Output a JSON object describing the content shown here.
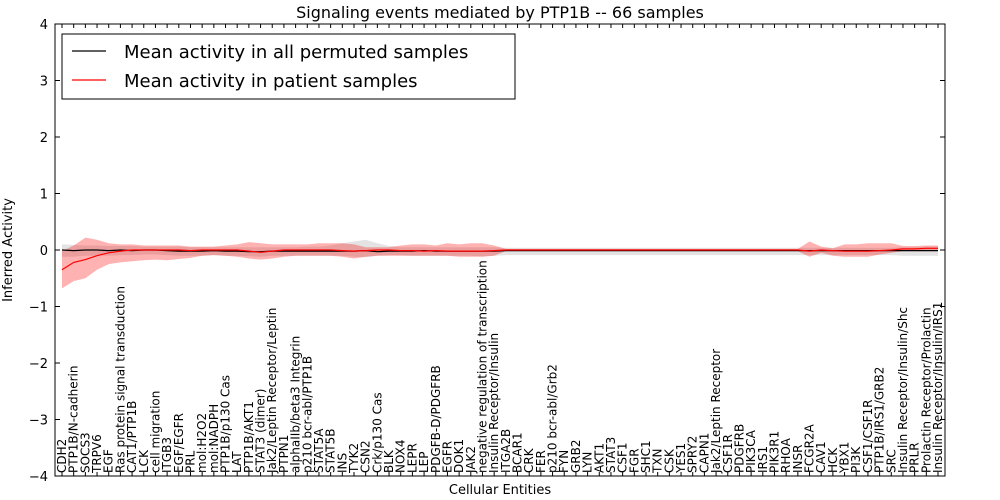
{
  "chart_data": {
    "type": "line",
    "title": "Signaling events mediated by PTP1B -- 66 samples",
    "xlabel": "Cellular Entities",
    "ylabel": "Inferred Activity",
    "ylim": [
      -4,
      4
    ],
    "yticks": [
      -4,
      -3,
      -2,
      -1,
      0,
      1,
      2,
      3,
      4
    ],
    "grid": false,
    "legend_position": "top-left",
    "categories": [
      "CDH2",
      "PTP1B/N-cadherin",
      "SOCS3",
      "TRPV6",
      "EGF",
      "Ras protein signal transduction",
      "CAT1/PTP1B",
      "LCK",
      "cell migration",
      "ITGB3",
      "EGF/EGFR",
      "PRL",
      "mol:H2O2",
      "mol:NADPH",
      "PTP1B/p130 Cas",
      "LAT",
      "PTP1B/AKT1",
      "STAT3 (dimer)",
      "Jak2/Leptin Receptor/Leptin",
      "PTPN1",
      "alphaIIb/beta3 Integrin",
      "p210 bcr-abl/PTP1B",
      "STAT5A",
      "STAT5B",
      "INS",
      "TYK2",
      "CSN2",
      "Crk/p130 Cas",
      "BLK",
      "NOX4",
      "LEPR",
      "LEP",
      "PDGFB-D/PDGFRB",
      "EGFR",
      "DOK1",
      "JAK2",
      "negative regulation of transcription",
      "Insulin Receptor/Insulin",
      "ITGA2B",
      "BCAR1",
      "CRK",
      "FER",
      "p210 bcr-abl/Grb2",
      "FYN",
      "GRB2",
      "LYN",
      "AKT1",
      "STAT3",
      "CSF1",
      "FGR",
      "SHC1",
      "TXN",
      "CSK",
      "YES1",
      "SPRY2",
      "CAPN1",
      "Jak2/Leptin Receptor",
      "CSF1R",
      "PDGFRB",
      "PIK3CA",
      "IRS1",
      "PIK3R1",
      "RHOA",
      "INSR",
      "FCGR2A",
      "CAV1",
      "HCK",
      "YBX1",
      "PI3K",
      "CSF1/CSF1R",
      "PTP1B/IRS1/GRB2",
      "SRC",
      "Insulin Receptor/Insulin/Shc",
      "PRLR",
      "Prolactin Receptor/Prolactin",
      "Insulin Receptor/Insulin/IRS1"
    ],
    "series": [
      {
        "name": "Mean activity in all permuted samples",
        "color": "#000000",
        "values": [
          0.0,
          -0.01,
          0.0,
          0.0,
          -0.01,
          0.0,
          -0.01,
          0.0,
          0.0,
          -0.01,
          -0.02,
          -0.02,
          -0.02,
          -0.01,
          -0.02,
          -0.02,
          -0.03,
          -0.03,
          -0.02,
          -0.02,
          -0.02,
          -0.02,
          -0.02,
          -0.02,
          -0.02,
          -0.02,
          -0.01,
          -0.03,
          -0.02,
          -0.02,
          -0.02,
          -0.01,
          -0.02,
          -0.02,
          -0.02,
          -0.02,
          -0.02,
          -0.02,
          -0.01,
          -0.01,
          -0.01,
          -0.01,
          -0.01,
          -0.01,
          -0.01,
          -0.01,
          -0.01,
          -0.01,
          -0.01,
          -0.01,
          -0.01,
          -0.01,
          -0.01,
          -0.01,
          -0.01,
          -0.01,
          -0.01,
          -0.01,
          -0.01,
          -0.01,
          -0.01,
          -0.01,
          -0.01,
          -0.01,
          -0.01,
          -0.01,
          -0.01,
          -0.01,
          -0.01,
          -0.01,
          -0.01,
          -0.01,
          -0.01,
          -0.01,
          -0.01,
          -0.01
        ],
        "lower": [
          -0.12,
          -0.12,
          -0.1,
          -0.1,
          -0.1,
          -0.09,
          -0.09,
          -0.08,
          -0.08,
          -0.09,
          -0.1,
          -0.1,
          -0.1,
          -0.09,
          -0.1,
          -0.1,
          -0.11,
          -0.12,
          -0.1,
          -0.1,
          -0.1,
          -0.1,
          -0.1,
          -0.1,
          -0.1,
          -0.12,
          -0.13,
          -0.1,
          -0.09,
          -0.09,
          -0.1,
          -0.1,
          -0.1,
          -0.1,
          -0.1,
          -0.1,
          -0.11,
          -0.1,
          -0.09,
          -0.09,
          -0.09,
          -0.09,
          -0.09,
          -0.09,
          -0.09,
          -0.09,
          -0.09,
          -0.09,
          -0.09,
          -0.09,
          -0.09,
          -0.09,
          -0.09,
          -0.09,
          -0.09,
          -0.09,
          -0.09,
          -0.09,
          -0.09,
          -0.09,
          -0.09,
          -0.09,
          -0.09,
          -0.09,
          -0.09,
          -0.09,
          -0.09,
          -0.09,
          -0.09,
          -0.09,
          -0.09,
          -0.09,
          -0.1,
          -0.1,
          -0.1,
          -0.1
        ],
        "upper": [
          0.1,
          0.09,
          0.08,
          0.08,
          0.07,
          0.07,
          0.07,
          0.06,
          0.06,
          0.06,
          0.06,
          0.05,
          0.05,
          0.05,
          0.05,
          0.05,
          0.05,
          0.05,
          0.05,
          0.05,
          0.05,
          0.06,
          0.06,
          0.08,
          0.12,
          0.15,
          0.18,
          0.12,
          0.07,
          0.05,
          0.05,
          0.05,
          0.05,
          0.05,
          0.05,
          0.05,
          0.05,
          0.05,
          0.04,
          0.04,
          0.04,
          0.04,
          0.04,
          0.04,
          0.04,
          0.04,
          0.04,
          0.04,
          0.04,
          0.04,
          0.04,
          0.04,
          0.04,
          0.04,
          0.04,
          0.04,
          0.04,
          0.04,
          0.04,
          0.04,
          0.04,
          0.04,
          0.04,
          0.04,
          0.04,
          0.04,
          0.04,
          0.04,
          0.04,
          0.04,
          0.04,
          0.04,
          0.05,
          0.05,
          0.06,
          0.06
        ]
      },
      {
        "name": "Mean activity in patient samples",
        "color": "#ff0000",
        "values": [
          -0.35,
          -0.22,
          -0.17,
          -0.1,
          -0.05,
          -0.02,
          0.0,
          0.0,
          0.0,
          0.0,
          0.0,
          -0.01,
          0.0,
          0.0,
          0.0,
          0.0,
          -0.02,
          -0.04,
          -0.02,
          0.0,
          0.0,
          0.0,
          0.0,
          0.0,
          -0.01,
          -0.02,
          -0.01,
          0.0,
          0.0,
          -0.01,
          -0.01,
          -0.02,
          -0.01,
          -0.02,
          -0.02,
          -0.02,
          -0.02,
          -0.01,
          0.0,
          0.0,
          0.0,
          0.0,
          0.0,
          0.0,
          0.0,
          0.0,
          0.0,
          0.0,
          0.0,
          0.0,
          0.0,
          0.0,
          0.0,
          0.0,
          0.0,
          0.0,
          0.0,
          0.0,
          0.0,
          0.0,
          0.0,
          0.0,
          0.0,
          0.0,
          -0.02,
          0.0,
          -0.01,
          -0.02,
          -0.02,
          -0.02,
          -0.01,
          0.0,
          0.02,
          0.02,
          0.03,
          0.03
        ],
        "lower": [
          -0.68,
          -0.55,
          -0.5,
          -0.35,
          -0.25,
          -0.22,
          -0.2,
          -0.18,
          -0.17,
          -0.18,
          -0.16,
          -0.14,
          -0.1,
          -0.09,
          -0.1,
          -0.12,
          -0.15,
          -0.17,
          -0.15,
          -0.12,
          -0.1,
          -0.1,
          -0.1,
          -0.1,
          -0.12,
          -0.15,
          -0.12,
          -0.1,
          -0.1,
          -0.1,
          -0.1,
          -0.1,
          -0.1,
          -0.1,
          -0.12,
          -0.12,
          -0.12,
          -0.1,
          -0.02,
          -0.02,
          -0.02,
          -0.02,
          -0.02,
          -0.02,
          -0.02,
          -0.02,
          -0.02,
          -0.02,
          -0.02,
          -0.02,
          -0.02,
          -0.02,
          -0.02,
          -0.02,
          -0.02,
          -0.02,
          -0.02,
          -0.02,
          -0.02,
          -0.02,
          -0.02,
          -0.02,
          -0.02,
          -0.02,
          -0.12,
          -0.05,
          -0.1,
          -0.12,
          -0.12,
          -0.12,
          -0.08,
          -0.05,
          -0.02,
          -0.02,
          -0.02,
          -0.02
        ],
        "upper": [
          -0.02,
          0.08,
          0.22,
          0.18,
          0.12,
          0.1,
          0.1,
          0.08,
          0.08,
          0.08,
          0.08,
          0.06,
          0.06,
          0.06,
          0.08,
          0.1,
          0.14,
          0.12,
          0.1,
          0.1,
          0.1,
          0.1,
          0.12,
          0.12,
          0.12,
          0.1,
          0.05,
          0.05,
          0.05,
          0.08,
          0.1,
          0.1,
          0.08,
          0.12,
          0.1,
          0.12,
          0.12,
          0.08,
          0.02,
          0.02,
          0.02,
          0.02,
          0.02,
          0.02,
          0.02,
          0.02,
          0.02,
          0.02,
          0.02,
          0.02,
          0.02,
          0.02,
          0.02,
          0.02,
          0.02,
          0.02,
          0.02,
          0.02,
          0.02,
          0.02,
          0.02,
          0.02,
          0.02,
          0.02,
          0.15,
          0.06,
          0.03,
          0.1,
          0.1,
          0.12,
          0.12,
          0.12,
          0.07,
          0.07,
          0.08,
          0.08
        ]
      }
    ]
  }
}
